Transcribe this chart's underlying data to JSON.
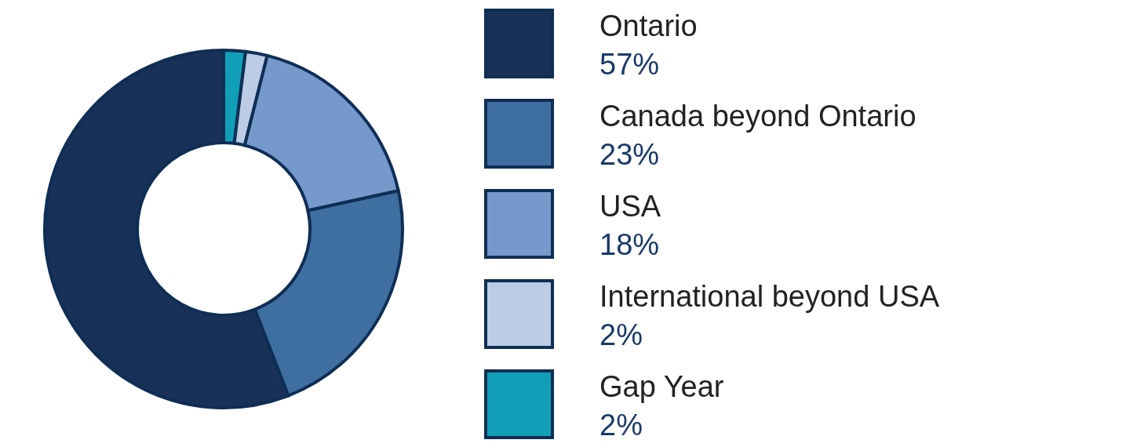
{
  "chart_data": {
    "type": "donut",
    "categories": [
      "Ontario",
      "Canada beyond Ontario",
      "USA",
      "International beyond USA",
      "Gap Year"
    ],
    "values": [
      57,
      23,
      18,
      2,
      2
    ],
    "colors": [
      "#1a3157",
      "#3f6fa0",
      "#7699cc",
      "#bccce4",
      "#109fb6"
    ],
    "legend": "right",
    "value_labels": [
      "57%",
      "23%",
      "18%",
      "2%",
      "2%"
    ]
  }
}
